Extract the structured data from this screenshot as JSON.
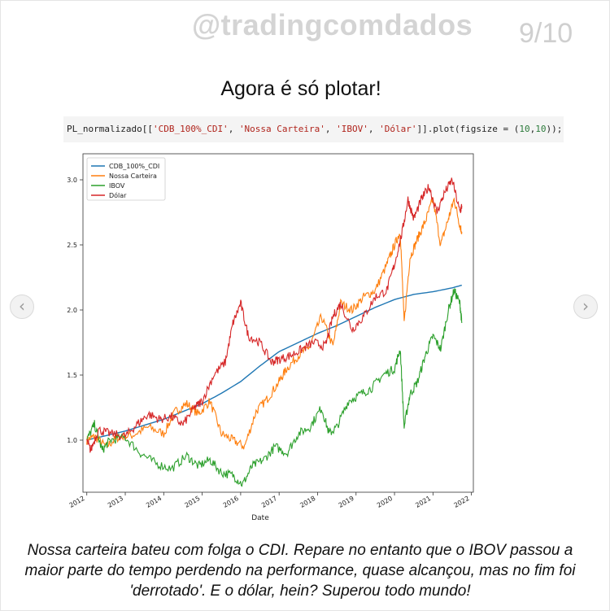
{
  "header": {
    "handle": "@tradingcomdados",
    "page_indicator": "9/10"
  },
  "heading": "Agora é só plotar!",
  "code": {
    "prefix": "PL_normalizado[[",
    "columns": [
      "'CDB_100%_CDI'",
      "'Nossa Carteira'",
      "'IBOV'",
      "'Dólar'"
    ],
    "middle": "]].plot(figsize = (",
    "figsize": [
      "10",
      "10"
    ],
    "suffix": "));"
  },
  "nav": {
    "prev_icon": "chevron-left-icon",
    "next_icon": "chevron-right-icon"
  },
  "caption": "Nossa carteira bateu com folga o CDI. Repare no entanto que o IBOV passou a maior parte do tempo perdendo na performance, quase alcançou, mas no fim foi 'derrotado'. E o dólar, hein? Superou todo mundo!",
  "chart_data": {
    "type": "line",
    "title": "",
    "xlabel": "Date",
    "ylabel": "",
    "xlim": [
      2011.9,
      2022.05
    ],
    "ylim": [
      0.6,
      3.2
    ],
    "x_ticks": [
      2012,
      2013,
      2014,
      2015,
      2016,
      2017,
      2018,
      2019,
      2020,
      2021,
      2022
    ],
    "x_tick_labels": [
      "2012",
      "2013",
      "2014",
      "2015",
      "2016",
      "2017",
      "2018",
      "2019",
      "2020",
      "2021",
      "2022"
    ],
    "y_ticks": [
      1.0,
      1.5,
      2.0,
      2.5,
      3.0
    ],
    "y_tick_labels": [
      "1.0",
      "1.5",
      "2.0",
      "2.5",
      "3.0"
    ],
    "legend_position": "top-left",
    "grid": false,
    "series": [
      {
        "name": "CDB_100%_CDI",
        "color": "#1f77b4",
        "x": [
          2012.0,
          2013.0,
          2014.0,
          2015.0,
          2015.5,
          2016.0,
          2016.5,
          2017.0,
          2017.5,
          2018.0,
          2018.5,
          2019.0,
          2019.5,
          2020.0,
          2020.5,
          2021.0,
          2021.5,
          2021.75
        ],
        "y": [
          1.0,
          1.07,
          1.16,
          1.28,
          1.36,
          1.45,
          1.57,
          1.68,
          1.75,
          1.82,
          1.88,
          1.95,
          2.02,
          2.08,
          2.12,
          2.14,
          2.17,
          2.19
        ]
      },
      {
        "name": "Nossa Carteira",
        "color": "#ff7f0e",
        "x": [
          2012.0,
          2012.2,
          2012.5,
          2012.8,
          2013.2,
          2013.6,
          2014.0,
          2014.3,
          2014.6,
          2014.9,
          2015.2,
          2015.5,
          2015.8,
          2016.1,
          2016.4,
          2016.7,
          2017.0,
          2017.2,
          2017.5,
          2017.8,
          2018.1,
          2018.4,
          2018.6,
          2018.9,
          2019.2,
          2019.5,
          2019.8,
          2020.0,
          2020.15,
          2020.25,
          2020.4,
          2020.6,
          2020.8,
          2021.0,
          2021.2,
          2021.4,
          2021.55,
          2021.7,
          2021.75
        ],
        "y": [
          1.0,
          1.03,
          0.95,
          1.02,
          1.04,
          1.1,
          1.05,
          1.22,
          1.28,
          1.2,
          1.3,
          1.05,
          1.0,
          0.95,
          1.22,
          1.32,
          1.45,
          1.55,
          1.65,
          1.72,
          1.95,
          1.72,
          2.05,
          2.0,
          2.1,
          2.15,
          2.35,
          2.5,
          2.6,
          1.9,
          2.4,
          2.55,
          2.68,
          2.85,
          2.5,
          2.7,
          2.85,
          2.65,
          2.6
        ]
      },
      {
        "name": "IBOV",
        "color": "#2ca02c",
        "x": [
          2012.0,
          2012.2,
          2012.4,
          2012.6,
          2013.0,
          2013.4,
          2013.8,
          2014.2,
          2014.6,
          2014.9,
          2015.2,
          2015.5,
          2015.8,
          2016.05,
          2016.3,
          2016.6,
          2016.9,
          2017.2,
          2017.5,
          2017.8,
          2018.1,
          2018.3,
          2018.5,
          2018.8,
          2019.1,
          2019.4,
          2019.7,
          2020.0,
          2020.15,
          2020.25,
          2020.4,
          2020.6,
          2020.8,
          2021.0,
          2021.2,
          2021.4,
          2021.55,
          2021.7,
          2021.75
        ],
        "y": [
          1.0,
          1.12,
          0.92,
          1.0,
          1.02,
          0.9,
          0.82,
          0.78,
          0.88,
          0.8,
          0.85,
          0.75,
          0.73,
          0.66,
          0.8,
          0.85,
          0.95,
          0.9,
          1.05,
          1.1,
          1.25,
          1.05,
          1.1,
          1.3,
          1.35,
          1.4,
          1.5,
          1.55,
          1.7,
          1.1,
          1.35,
          1.45,
          1.65,
          1.8,
          1.7,
          2.0,
          2.15,
          2.05,
          1.9
        ]
      },
      {
        "name": "Dólar",
        "color": "#d62728",
        "x": [
          2012.0,
          2012.1,
          2012.3,
          2012.6,
          2013.0,
          2013.3,
          2013.6,
          2013.9,
          2014.2,
          2014.5,
          2014.8,
          2015.0,
          2015.3,
          2015.6,
          2015.8,
          2016.0,
          2016.2,
          2016.5,
          2016.8,
          2017.0,
          2017.3,
          2017.6,
          2017.9,
          2018.2,
          2018.4,
          2018.6,
          2018.9,
          2019.2,
          2019.5,
          2019.8,
          2020.0,
          2020.2,
          2020.35,
          2020.5,
          2020.7,
          2020.9,
          2021.1,
          2021.3,
          2021.5,
          2021.7,
          2021.75
        ],
        "y": [
          1.0,
          0.92,
          1.08,
          1.05,
          1.03,
          1.12,
          1.2,
          1.16,
          1.18,
          1.12,
          1.25,
          1.3,
          1.5,
          1.6,
          1.9,
          2.05,
          1.8,
          1.75,
          1.6,
          1.62,
          1.65,
          1.7,
          1.75,
          1.72,
          1.95,
          2.05,
          1.85,
          1.95,
          2.1,
          2.15,
          2.35,
          2.6,
          2.85,
          2.7,
          2.85,
          2.95,
          2.75,
          2.9,
          3.0,
          2.75,
          2.8
        ]
      }
    ]
  }
}
